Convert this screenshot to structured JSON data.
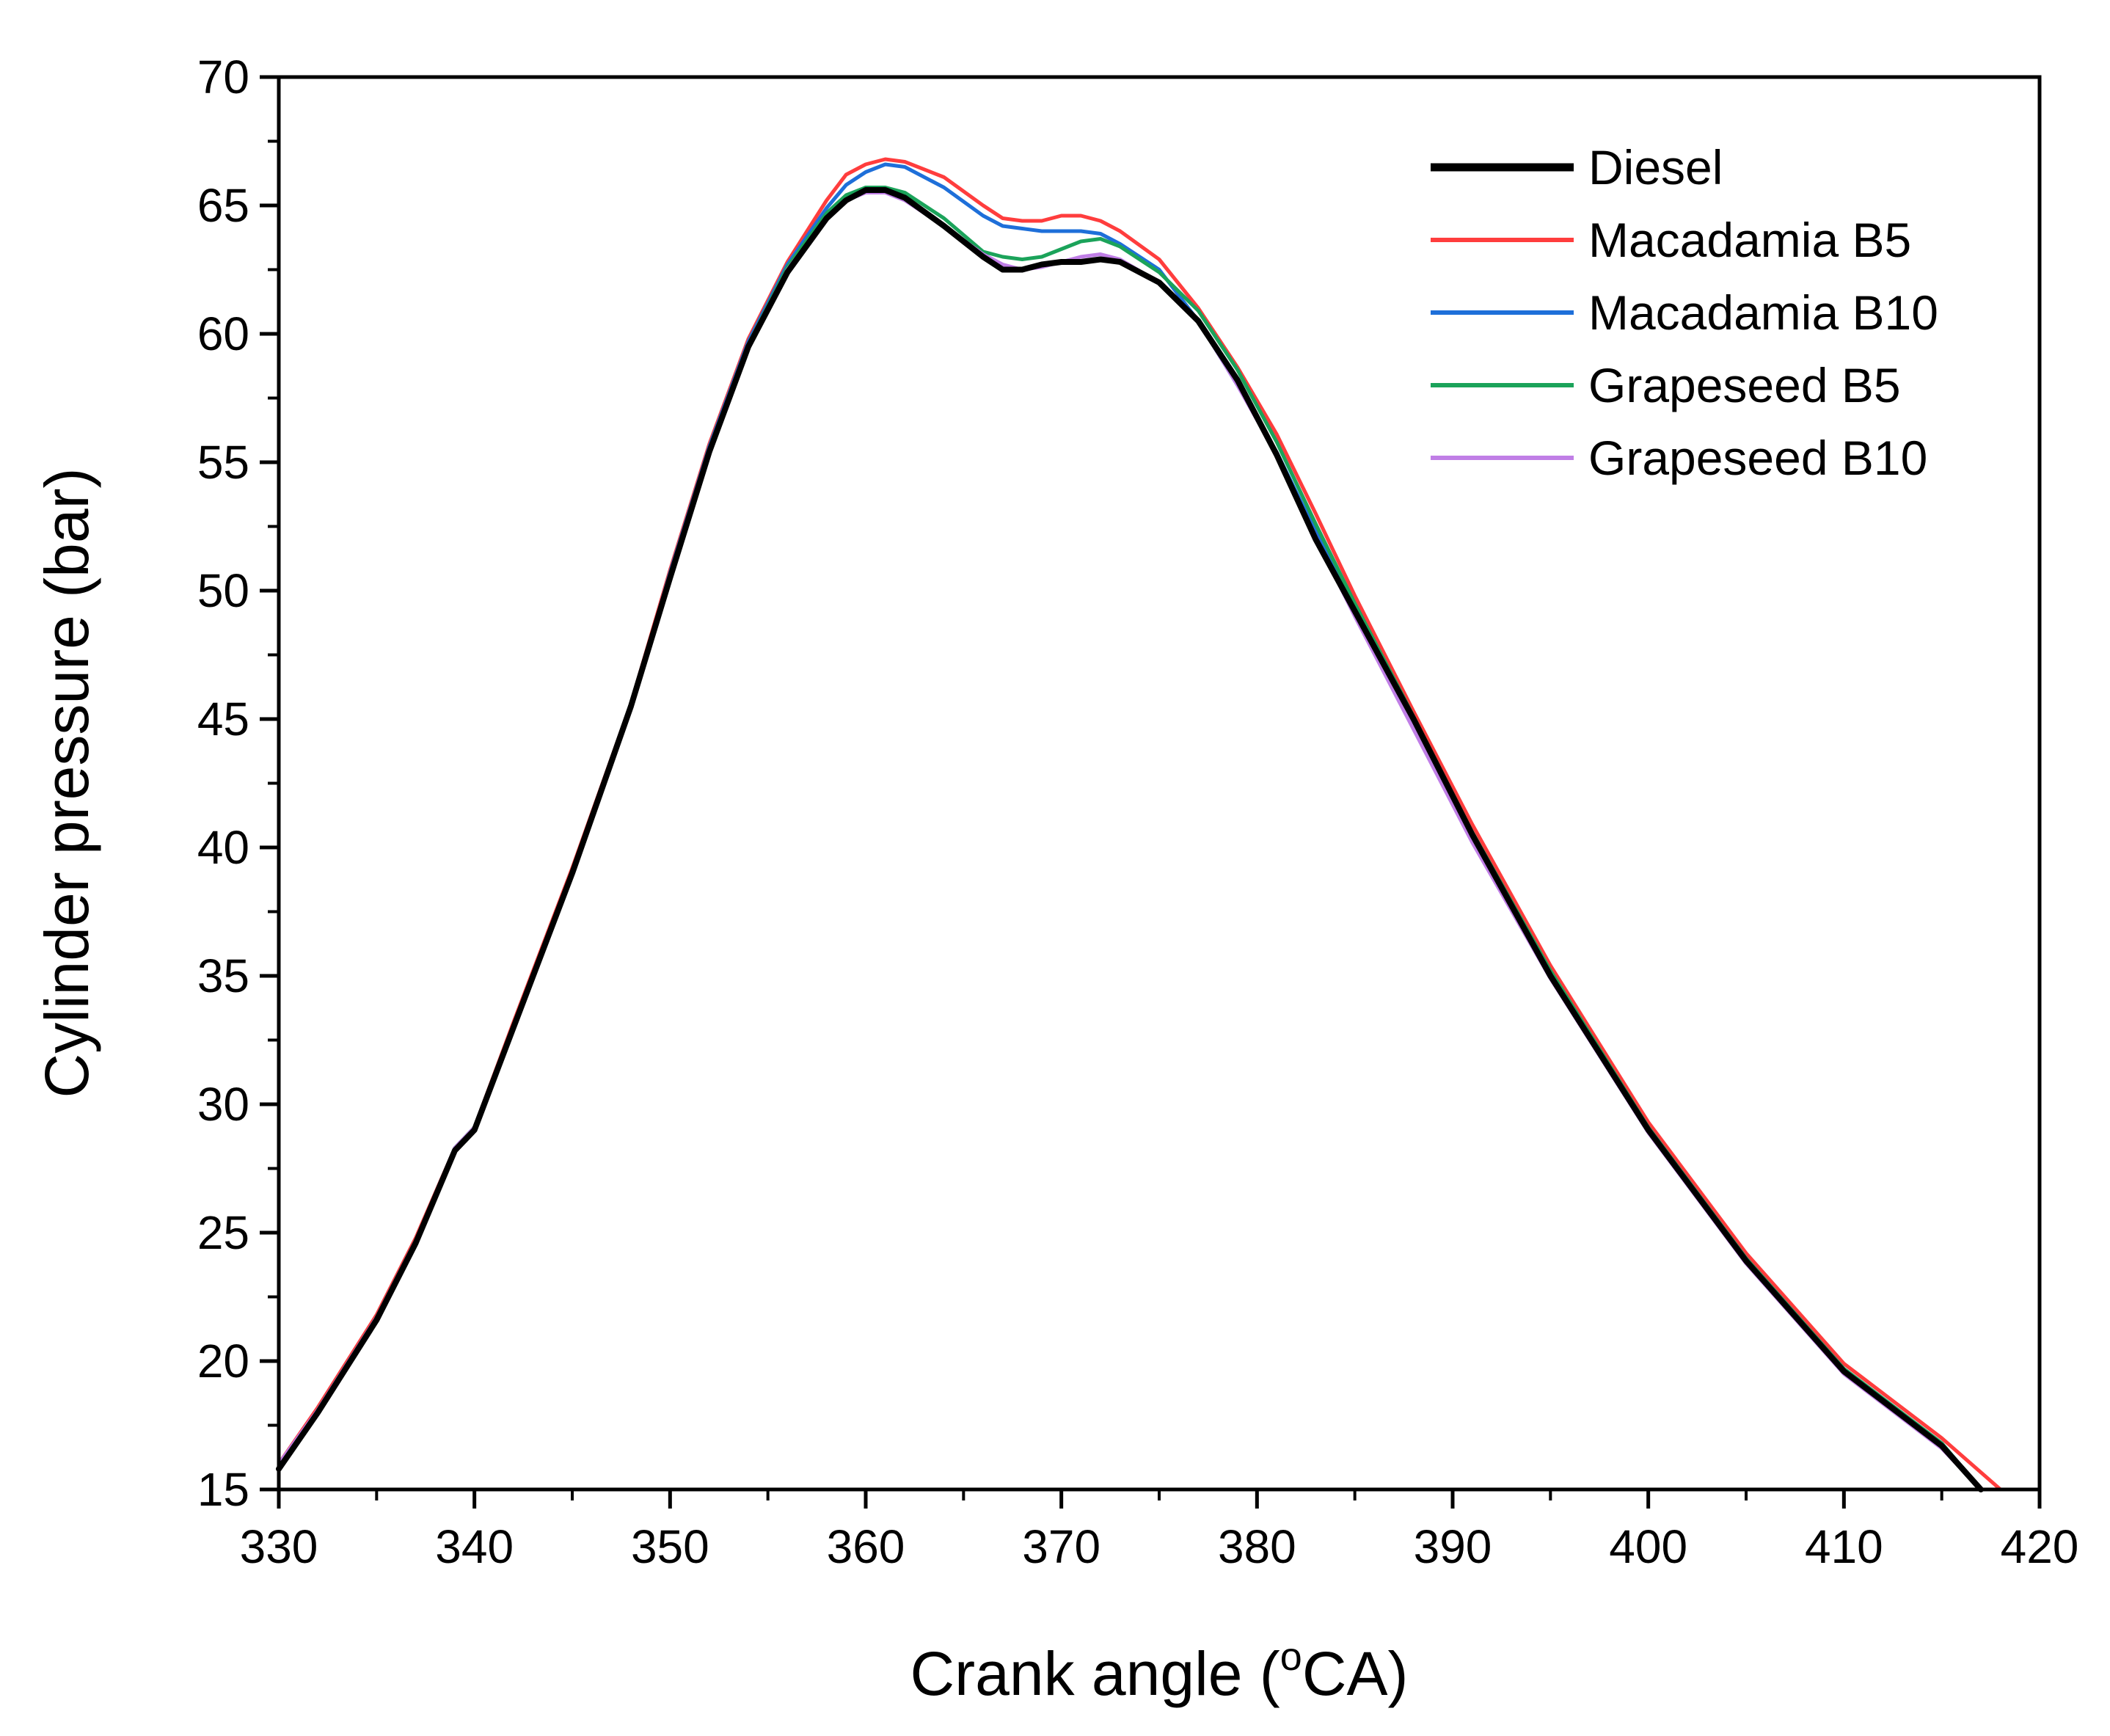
{
  "chart_data": {
    "type": "line",
    "title": "",
    "xlabel": "Crank angle (",
    "xlabel_sup": "o",
    "xlabel_tail": "CA)",
    "ylabel": "Cylinder pressure (bar)",
    "xlim": [
      330,
      420
    ],
    "ylim": [
      15,
      70
    ],
    "x_ticks": [
      "330",
      "340",
      "350",
      "360",
      "370",
      "380",
      "390",
      "400",
      "410",
      "420"
    ],
    "y_ticks": [
      "15",
      "20",
      "25",
      "30",
      "35",
      "40",
      "45",
      "50",
      "55",
      "60",
      "65",
      "70"
    ],
    "grid": false,
    "legend_position": "top-right",
    "series": [
      {
        "name": "Diesel",
        "color": "#000000",
        "line_width": "thick",
        "points": [
          [
            330,
            15.8
          ],
          [
            332,
            18.0
          ],
          [
            335,
            21.6
          ],
          [
            337,
            24.6
          ],
          [
            339,
            28.2
          ],
          [
            340,
            29.0
          ],
          [
            342,
            33.0
          ],
          [
            345,
            39.0
          ],
          [
            348,
            45.5
          ],
          [
            350,
            50.5
          ],
          [
            352,
            55.4
          ],
          [
            354,
            59.5
          ],
          [
            356,
            62.4
          ],
          [
            358,
            64.5
          ],
          [
            359,
            65.2
          ],
          [
            360,
            65.6
          ],
          [
            361,
            65.6
          ],
          [
            362,
            65.3
          ],
          [
            364,
            64.2
          ],
          [
            366,
            63.0
          ],
          [
            367,
            62.5
          ],
          [
            368,
            62.5
          ],
          [
            369,
            62.7
          ],
          [
            370,
            62.8
          ],
          [
            371,
            62.8
          ],
          [
            372,
            62.9
          ],
          [
            373,
            62.8
          ],
          [
            375,
            62.0
          ],
          [
            377,
            60.5
          ],
          [
            379,
            58.2
          ],
          [
            381,
            55.3
          ],
          [
            383,
            52.0
          ],
          [
            385,
            49.2
          ],
          [
            388,
            45.0
          ],
          [
            391,
            40.5
          ],
          [
            395,
            35.0
          ],
          [
            400,
            29.0
          ],
          [
            405,
            23.9
          ],
          [
            410,
            19.6
          ],
          [
            415,
            16.7
          ],
          [
            417,
            15.0
          ]
        ]
      },
      {
        "name": "Macadamia B5",
        "color": "#ff3d3d",
        "line_width": "normal",
        "points": [
          [
            330,
            16.0
          ],
          [
            332,
            18.2
          ],
          [
            335,
            21.8
          ],
          [
            337,
            24.8
          ],
          [
            339,
            28.3
          ],
          [
            340,
            29.1
          ],
          [
            342,
            33.2
          ],
          [
            345,
            39.2
          ],
          [
            348,
            45.6
          ],
          [
            350,
            50.8
          ],
          [
            352,
            55.7
          ],
          [
            354,
            59.8
          ],
          [
            356,
            62.8
          ],
          [
            358,
            65.2
          ],
          [
            359,
            66.2
          ],
          [
            360,
            66.6
          ],
          [
            361,
            66.8
          ],
          [
            362,
            66.7
          ],
          [
            364,
            66.1
          ],
          [
            366,
            65.0
          ],
          [
            367,
            64.5
          ],
          [
            368,
            64.4
          ],
          [
            369,
            64.4
          ],
          [
            370,
            64.6
          ],
          [
            371,
            64.6
          ],
          [
            372,
            64.4
          ],
          [
            373,
            64.0
          ],
          [
            375,
            62.9
          ],
          [
            377,
            61.0
          ],
          [
            379,
            58.7
          ],
          [
            381,
            56.1
          ],
          [
            383,
            53.0
          ],
          [
            385,
            49.8
          ],
          [
            388,
            45.3
          ],
          [
            391,
            40.9
          ],
          [
            395,
            35.4
          ],
          [
            400,
            29.3
          ],
          [
            405,
            24.2
          ],
          [
            410,
            19.9
          ],
          [
            415,
            17.0
          ],
          [
            418,
            15.0
          ]
        ]
      },
      {
        "name": "Macadamia B10",
        "color": "#1e6fd9",
        "line_width": "normal",
        "points": [
          [
            330,
            15.9
          ],
          [
            332,
            18.1
          ],
          [
            335,
            21.7
          ],
          [
            337,
            24.7
          ],
          [
            339,
            28.3
          ],
          [
            340,
            29.1
          ],
          [
            342,
            33.1
          ],
          [
            345,
            39.1
          ],
          [
            348,
            45.5
          ],
          [
            350,
            50.7
          ],
          [
            352,
            55.6
          ],
          [
            354,
            59.7
          ],
          [
            356,
            62.7
          ],
          [
            358,
            64.9
          ],
          [
            359,
            65.8
          ],
          [
            360,
            66.3
          ],
          [
            361,
            66.6
          ],
          [
            362,
            66.5
          ],
          [
            364,
            65.7
          ],
          [
            366,
            64.6
          ],
          [
            367,
            64.2
          ],
          [
            368,
            64.1
          ],
          [
            369,
            64.0
          ],
          [
            370,
            64.0
          ],
          [
            371,
            64.0
          ],
          [
            372,
            63.9
          ],
          [
            373,
            63.5
          ],
          [
            375,
            62.5
          ],
          [
            377,
            60.5
          ],
          [
            379,
            58.0
          ],
          [
            381,
            55.4
          ],
          [
            383,
            52.3
          ],
          [
            385,
            49.3
          ],
          [
            388,
            44.9
          ],
          [
            391,
            40.5
          ],
          [
            395,
            35.1
          ],
          [
            400,
            29.1
          ],
          [
            405,
            24.0
          ],
          [
            410,
            19.7
          ],
          [
            415,
            16.8
          ],
          [
            417,
            15.0
          ]
        ]
      },
      {
        "name": "Grapeseed B5",
        "color": "#1ba35a",
        "line_width": "normal",
        "points": [
          [
            330,
            15.9
          ],
          [
            332,
            18.1
          ],
          [
            335,
            21.7
          ],
          [
            337,
            24.7
          ],
          [
            339,
            28.3
          ],
          [
            340,
            29.1
          ],
          [
            342,
            33.1
          ],
          [
            345,
            39.1
          ],
          [
            348,
            45.5
          ],
          [
            350,
            50.6
          ],
          [
            352,
            55.5
          ],
          [
            354,
            59.6
          ],
          [
            356,
            62.6
          ],
          [
            358,
            64.7
          ],
          [
            359,
            65.4
          ],
          [
            360,
            65.7
          ],
          [
            361,
            65.7
          ],
          [
            362,
            65.5
          ],
          [
            364,
            64.5
          ],
          [
            366,
            63.2
          ],
          [
            367,
            63.0
          ],
          [
            368,
            62.9
          ],
          [
            369,
            63.0
          ],
          [
            370,
            63.3
          ],
          [
            371,
            63.6
          ],
          [
            372,
            63.7
          ],
          [
            373,
            63.4
          ],
          [
            375,
            62.4
          ],
          [
            377,
            60.9
          ],
          [
            379,
            58.6
          ],
          [
            381,
            55.8
          ],
          [
            383,
            52.6
          ],
          [
            385,
            49.5
          ],
          [
            388,
            45.1
          ],
          [
            391,
            40.6
          ],
          [
            395,
            35.2
          ],
          [
            400,
            29.1
          ],
          [
            405,
            24.0
          ],
          [
            410,
            19.7
          ],
          [
            415,
            16.8
          ],
          [
            417,
            15.0
          ]
        ]
      },
      {
        "name": "Grapeseed B10",
        "color": "#c07ee6",
        "line_width": "normal",
        "points": [
          [
            330,
            16.0
          ],
          [
            332,
            18.1
          ],
          [
            335,
            21.7
          ],
          [
            337,
            24.7
          ],
          [
            339,
            28.3
          ],
          [
            340,
            29.1
          ],
          [
            342,
            33.1
          ],
          [
            345,
            39.1
          ],
          [
            348,
            45.5
          ],
          [
            350,
            50.6
          ],
          [
            352,
            55.5
          ],
          [
            354,
            59.6
          ],
          [
            356,
            62.5
          ],
          [
            358,
            64.5
          ],
          [
            359,
            65.2
          ],
          [
            360,
            65.5
          ],
          [
            361,
            65.5
          ],
          [
            362,
            65.2
          ],
          [
            364,
            64.2
          ],
          [
            366,
            63.1
          ],
          [
            367,
            62.7
          ],
          [
            368,
            62.5
          ],
          [
            369,
            62.6
          ],
          [
            370,
            62.8
          ],
          [
            371,
            63.0
          ],
          [
            372,
            63.1
          ],
          [
            373,
            62.9
          ],
          [
            375,
            62.0
          ],
          [
            377,
            60.5
          ],
          [
            379,
            58.0
          ],
          [
            381,
            55.3
          ],
          [
            383,
            52.1
          ],
          [
            385,
            49.0
          ],
          [
            388,
            44.6
          ],
          [
            391,
            40.2
          ],
          [
            395,
            34.9
          ],
          [
            400,
            28.9
          ],
          [
            405,
            23.8
          ],
          [
            410,
            19.5
          ],
          [
            415,
            16.6
          ],
          [
            417,
            15.0
          ]
        ]
      }
    ]
  }
}
